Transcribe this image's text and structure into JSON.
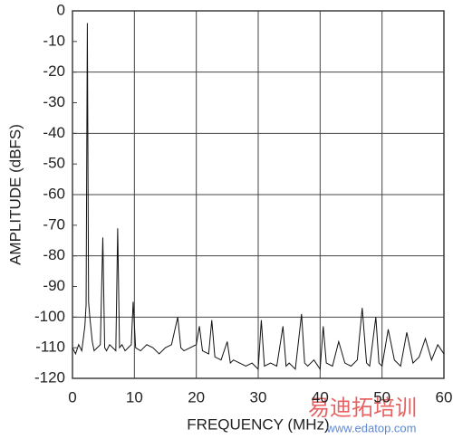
{
  "chart_data": {
    "type": "line",
    "xlabel": "FREQUENCY (MHz)",
    "ylabel": "AMPLITUDE (dBFS)",
    "watermark": "易迪拓培训",
    "watermark_url": "www.edatop.com",
    "xlim": [
      0,
      60
    ],
    "xticks": [
      0,
      10,
      20,
      30,
      40,
      50,
      60
    ],
    "ylim": [
      -120,
      0
    ],
    "yticks": [
      0,
      -10,
      -20,
      -30,
      -40,
      -50,
      -60,
      -70,
      -80,
      -90,
      -100,
      -110,
      -120
    ],
    "ygrid": [
      0,
      -20,
      -40,
      -60,
      -80,
      -100,
      -120
    ],
    "grid": true,
    "series": [
      {
        "color": "#111111",
        "x": [
          0,
          0.5,
          1,
          1.5,
          2,
          2.2,
          2.4,
          2.6,
          2.8,
          3.2,
          3.5,
          4,
          4.5,
          4.9,
          5.2,
          5.5,
          6,
          6.5,
          7,
          7.3,
          7.6,
          8,
          8.5,
          9,
          9.5,
          9.8,
          10.2,
          11,
          12,
          13,
          14,
          15,
          16,
          17,
          17.5,
          18,
          19,
          20,
          20.5,
          21,
          22,
          22.5,
          23,
          24,
          25,
          25.5,
          26,
          27,
          28,
          29,
          30,
          30.5,
          31,
          32,
          33,
          34,
          34.5,
          35,
          36,
          37,
          37.5,
          38,
          39,
          40,
          40.5,
          41,
          42,
          43,
          44,
          45,
          46,
          46.8,
          47.5,
          48,
          49,
          49.5,
          50,
          51,
          52,
          53,
          54,
          55,
          56,
          57,
          58,
          59,
          60
        ],
        "values": [
          -110,
          -112,
          -109,
          -111,
          -103,
          -96,
          -4,
          -95,
          -100,
          -108,
          -111,
          -110,
          -109,
          -74,
          -110,
          -111,
          -109,
          -110,
          -111,
          -71,
          -110,
          -109,
          -111,
          -110,
          -109,
          -95,
          -110,
          -111,
          -109,
          -110,
          -112,
          -110,
          -109,
          -100,
          -110,
          -111,
          -110,
          -109,
          -103,
          -111,
          -112,
          -101,
          -113,
          -114,
          -108,
          -115,
          -114,
          -115,
          -116,
          -115,
          -117,
          -101,
          -116,
          -115,
          -116,
          -103,
          -116,
          -115,
          -117,
          -99,
          -115,
          -116,
          -114,
          -117,
          -103,
          -115,
          -116,
          -108,
          -115,
          -116,
          -114,
          -97,
          -115,
          -116,
          -100,
          -115,
          -116,
          -104,
          -114,
          -116,
          -105,
          -115,
          -113,
          -107,
          -114,
          -109,
          -112
        ]
      }
    ]
  }
}
